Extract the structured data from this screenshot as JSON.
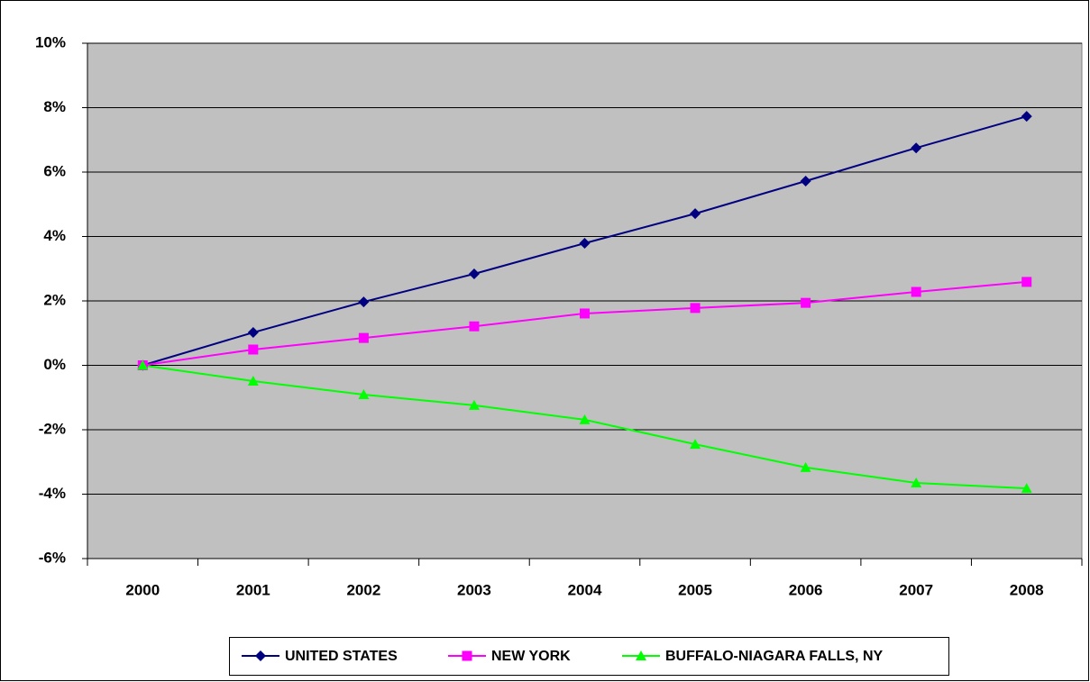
{
  "chart_data": {
    "type": "line",
    "categories": [
      "2000",
      "2001",
      "2002",
      "2003",
      "2004",
      "2005",
      "2006",
      "2007",
      "2008"
    ],
    "series": [
      {
        "name": "UNITED STATES",
        "color": "#000080",
        "marker": "diamond",
        "values": [
          0,
          1.02,
          1.97,
          2.84,
          3.79,
          4.71,
          5.72,
          6.75,
          7.73
        ]
      },
      {
        "name": "NEW YORK",
        "color": "#ff00ff",
        "marker": "square",
        "values": [
          0,
          0.49,
          0.85,
          1.21,
          1.61,
          1.78,
          1.94,
          2.28,
          2.59
        ]
      },
      {
        "name": "BUFFALO-NIAGARA FALLS, NY",
        "color": "#00ff00",
        "marker": "triangle",
        "values": [
          0,
          -0.49,
          -0.91,
          -1.24,
          -1.69,
          -2.45,
          -3.17,
          -3.65,
          -3.82
        ]
      }
    ],
    "ylim": [
      -6,
      10
    ],
    "yticks": [
      {
        "value": -6,
        "label": "-6%"
      },
      {
        "value": -4,
        "label": "-4%"
      },
      {
        "value": -2,
        "label": "-2%"
      },
      {
        "value": 0,
        "label": "0%"
      },
      {
        "value": 2,
        "label": "2%"
      },
      {
        "value": 4,
        "label": "4%"
      },
      {
        "value": 6,
        "label": "6%"
      },
      {
        "value": 8,
        "label": "8%"
      },
      {
        "value": 10,
        "label": "10%"
      }
    ],
    "grid": true,
    "legend": "bottom"
  }
}
